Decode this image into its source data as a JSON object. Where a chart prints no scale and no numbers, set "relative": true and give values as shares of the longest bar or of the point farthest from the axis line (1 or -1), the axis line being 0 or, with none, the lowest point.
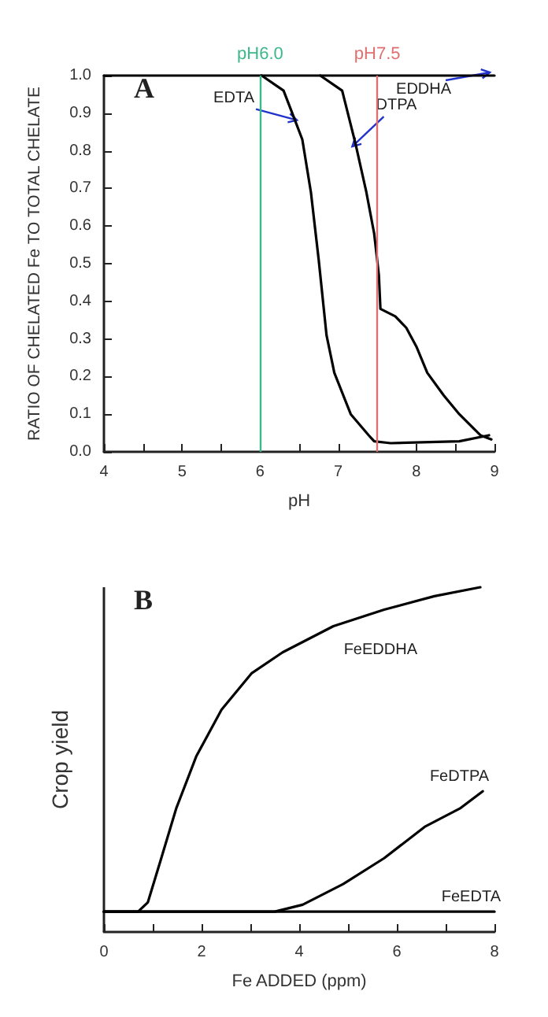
{
  "chart_data": [
    {
      "type": "line",
      "title": "A",
      "xlabel": "pH",
      "ylabel": "RATIO OF CHELATED Fe TO TOTAL CHELATE",
      "xlim": [
        4,
        9
      ],
      "ylim": [
        0,
        1
      ],
      "xticks": [
        4,
        {
          "value": 4.5,
          "label": null
        },
        5,
        {
          "value": 5.5,
          "label": null
        },
        6,
        {
          "value": 6.5,
          "label": null
        },
        7,
        {
          "value": 7.5,
          "label": null
        },
        8,
        {
          "value": 8.5,
          "label": null
        },
        9
      ],
      "yticks": [
        {
          "value": 0,
          "label": "0.0"
        },
        0.1,
        0.2,
        0.3,
        0.4,
        0.5,
        0.6,
        0.7,
        0.8,
        0.9,
        {
          "value": 1,
          "label": "1.0"
        }
      ],
      "series": [
        {
          "color": "#000000",
          "x": [
            6.02,
            6.3,
            6.43,
            6.54,
            6.65,
            6.75,
            6.85,
            6.95,
            7.16,
            7.39,
            7.46,
            7.67,
            8.55,
            8.93
          ],
          "values": [
            1.0,
            0.96,
            0.89,
            0.83,
            0.69,
            0.51,
            0.31,
            0.21,
            0.1,
            0.044,
            0.028,
            0.023,
            0.028,
            0.044
          ]
        },
        {
          "color": "#000000",
          "x": [
            6.77,
            7.05,
            7.22,
            7.36,
            7.46,
            7.52,
            7.54,
            7.73,
            7.87,
            8.0,
            8.14,
            8.35,
            8.55,
            8.82,
            8.96
          ],
          "values": [
            1.0,
            0.96,
            0.82,
            0.69,
            0.58,
            0.47,
            0.38,
            0.36,
            0.33,
            0.28,
            0.21,
            0.15,
            0.1,
            0.044,
            0.033
          ]
        },
        {
          "color": "#000000",
          "x": [
            4,
            9
          ],
          "values": [
            1.0,
            1.0
          ]
        }
      ],
      "ref_lines": [
        {
          "axis": "x",
          "value": 6,
          "label": "pH6.0",
          "color": "#3cb88a"
        },
        {
          "axis": "x",
          "value": 7.5,
          "label": "pH7.5",
          "color": "#e07070"
        }
      ],
      "annotations": [
        {
          "text": "EDTA",
          "x": 6.43,
          "y": 0.89
        },
        {
          "text": "DTPA",
          "x": 7.22,
          "y": 0.82
        },
        {
          "text": "EDDHA",
          "x": 8.9,
          "y": 1.0
        }
      ],
      "grid": false,
      "legend": false,
      "marker": "none",
      "line_style": "solid"
    },
    {
      "type": "line",
      "title": "B",
      "xlabel": "Fe ADDED (ppm)",
      "ylabel": "Crop yield",
      "relative": true,
      "xlim": [
        0,
        8
      ],
      "xticks": [
        0,
        {
          "value": 1,
          "label": null
        },
        2,
        {
          "value": 3,
          "label": null
        },
        4,
        {
          "value": 5,
          "label": null
        },
        6,
        {
          "value": 7,
          "label": null
        },
        8
      ],
      "series": [
        {
          "name": "FeEDDHA",
          "color": "#000000",
          "x": [
            0,
            0.7,
            0.9,
            1.16,
            1.48,
            1.89,
            2.41,
            3.03,
            3.66,
            4.7,
            5.74,
            6.77,
            7.71
          ],
          "values": [
            0.059,
            0.059,
            0.086,
            0.207,
            0.358,
            0.509,
            0.645,
            0.751,
            0.811,
            0.887,
            0.935,
            0.974,
            1.0
          ]
        },
        {
          "name": "FeDTPA",
          "color": "#000000",
          "x": [
            0,
            3.5,
            4.07,
            4.9,
            5.74,
            6.57,
            7.29,
            7.76
          ],
          "values": [
            0.059,
            0.059,
            0.079,
            0.139,
            0.214,
            0.305,
            0.358,
            0.408
          ]
        },
        {
          "name": "FeEDTA",
          "color": "#000000",
          "x": [
            0,
            8
          ],
          "values": [
            0.059,
            0.059
          ]
        }
      ],
      "grid": false,
      "legend": false,
      "marker": "none",
      "line_style": "solid"
    }
  ]
}
